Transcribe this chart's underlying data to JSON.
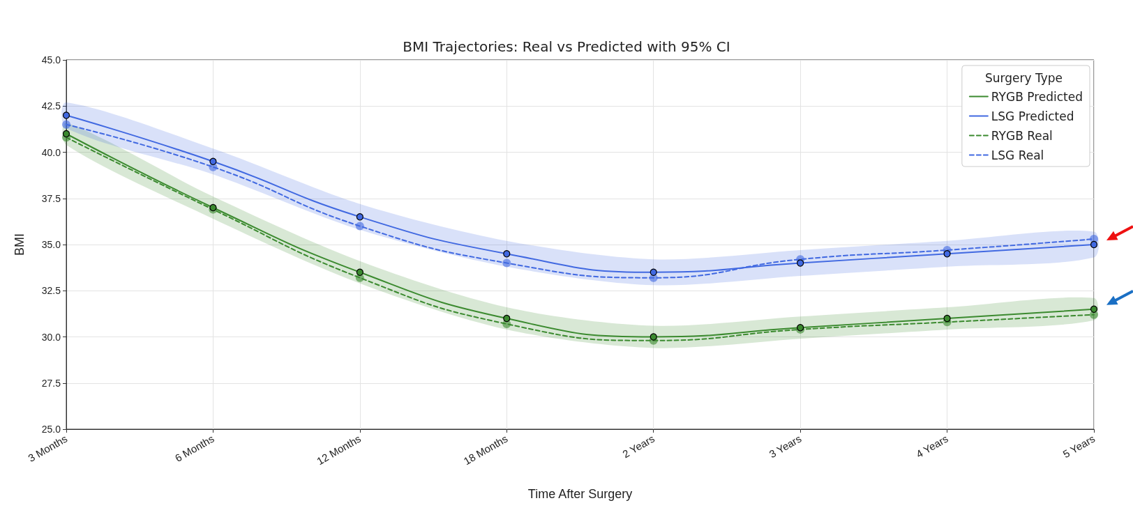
{
  "chart_data": {
    "type": "line",
    "title": "BMI Trajectories: Real vs Predicted with 95% CI",
    "xlabel": "Time After Surgery",
    "ylabel": "BMI",
    "legend_title": "Surgery Type",
    "categories": [
      "3 Months",
      "6 Months",
      "12 Months",
      "18 Months",
      "2 Years",
      "3 Years",
      "4 Years",
      "5 Years"
    ],
    "ylim": [
      25,
      45
    ],
    "yticks": [
      {
        "value": 25,
        "label": "25.0"
      },
      {
        "value": 27.5,
        "label": "27.5"
      },
      {
        "value": 30,
        "label": "30.0"
      },
      {
        "value": 32.5,
        "label": "32.5"
      },
      {
        "value": 35,
        "label": "35.0"
      },
      {
        "value": 37.5,
        "label": "37.5"
      },
      {
        "value": 40,
        "label": "40.0"
      },
      {
        "value": 42.5,
        "label": "42.5"
      },
      {
        "value": 45,
        "label": "45.0"
      }
    ],
    "grid": true,
    "legend": "top right",
    "marker": "circle",
    "series": [
      {
        "name": "RYGB Predicted",
        "color": "#3b8a2f",
        "line_style": "solid",
        "values": [
          41.0,
          37.0,
          33.5,
          31.0,
          30.0,
          30.5,
          31.0,
          31.5
        ],
        "lower": [
          40.4,
          36.4,
          32.9,
          30.4,
          29.4,
          29.9,
          30.4,
          30.9
        ],
        "upper": [
          41.6,
          37.6,
          34.1,
          31.6,
          30.6,
          31.1,
          31.6,
          32.1
        ]
      },
      {
        "name": "LSG Predicted",
        "color": "#4169e1",
        "line_style": "solid",
        "values": [
          42.0,
          39.5,
          36.5,
          34.5,
          33.5,
          34.0,
          34.5,
          35.0
        ],
        "lower": [
          41.3,
          38.8,
          35.8,
          33.8,
          32.8,
          33.3,
          33.8,
          34.3
        ],
        "upper": [
          42.7,
          40.2,
          37.2,
          35.2,
          34.2,
          34.7,
          35.2,
          35.7
        ]
      },
      {
        "name": "RYGB Real",
        "color": "#3b8a2f",
        "line_style": "dashed",
        "values": [
          40.8,
          36.9,
          33.2,
          30.7,
          29.8,
          30.4,
          30.8,
          31.2
        ]
      },
      {
        "name": "LSG Real",
        "color": "#4169e1",
        "line_style": "dashed",
        "values": [
          41.5,
          39.2,
          36.0,
          34.0,
          33.2,
          34.2,
          34.7,
          35.3
        ]
      }
    ]
  }
}
